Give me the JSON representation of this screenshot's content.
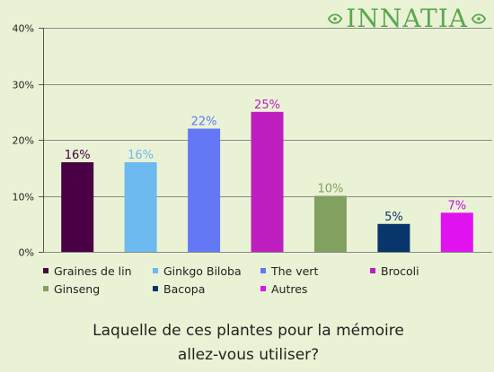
{
  "brand": {
    "logo_text": "INNATIA"
  },
  "question": {
    "line1": "Laquelle de ces plantes pour la mémoire",
    "line2": "allez-vous utiliser?"
  },
  "chart_data": {
    "type": "bar",
    "categories": [
      "Graines de lin",
      "Ginkgo Biloba",
      "The vert",
      "Brocoli",
      "Ginseng",
      "Bacopa",
      "Autres"
    ],
    "values": [
      16,
      16,
      22,
      25,
      10,
      5,
      7
    ],
    "value_labels": [
      "16%",
      "16%",
      "22%",
      "25%",
      "10%",
      "5%",
      "7%"
    ],
    "colors": [
      "#4a0044",
      "#6cbaf0",
      "#6478f6",
      "#be1fbe",
      "#82a060",
      "#08356b",
      "#e012f0"
    ],
    "label_colors": [
      "#3c003c",
      "#6cbaf0",
      "#6478f6",
      "#be1fbe",
      "#82a060",
      "#08356b",
      "#c010d8"
    ],
    "ylim": [
      0,
      40
    ],
    "yticks": [
      0,
      10,
      20,
      30,
      40
    ],
    "ytick_labels": [
      "0%",
      "10%",
      "20%",
      "30%",
      "40%"
    ],
    "grid": true,
    "legend": "bottom",
    "title": "",
    "xlabel": "",
    "ylabel": ""
  }
}
